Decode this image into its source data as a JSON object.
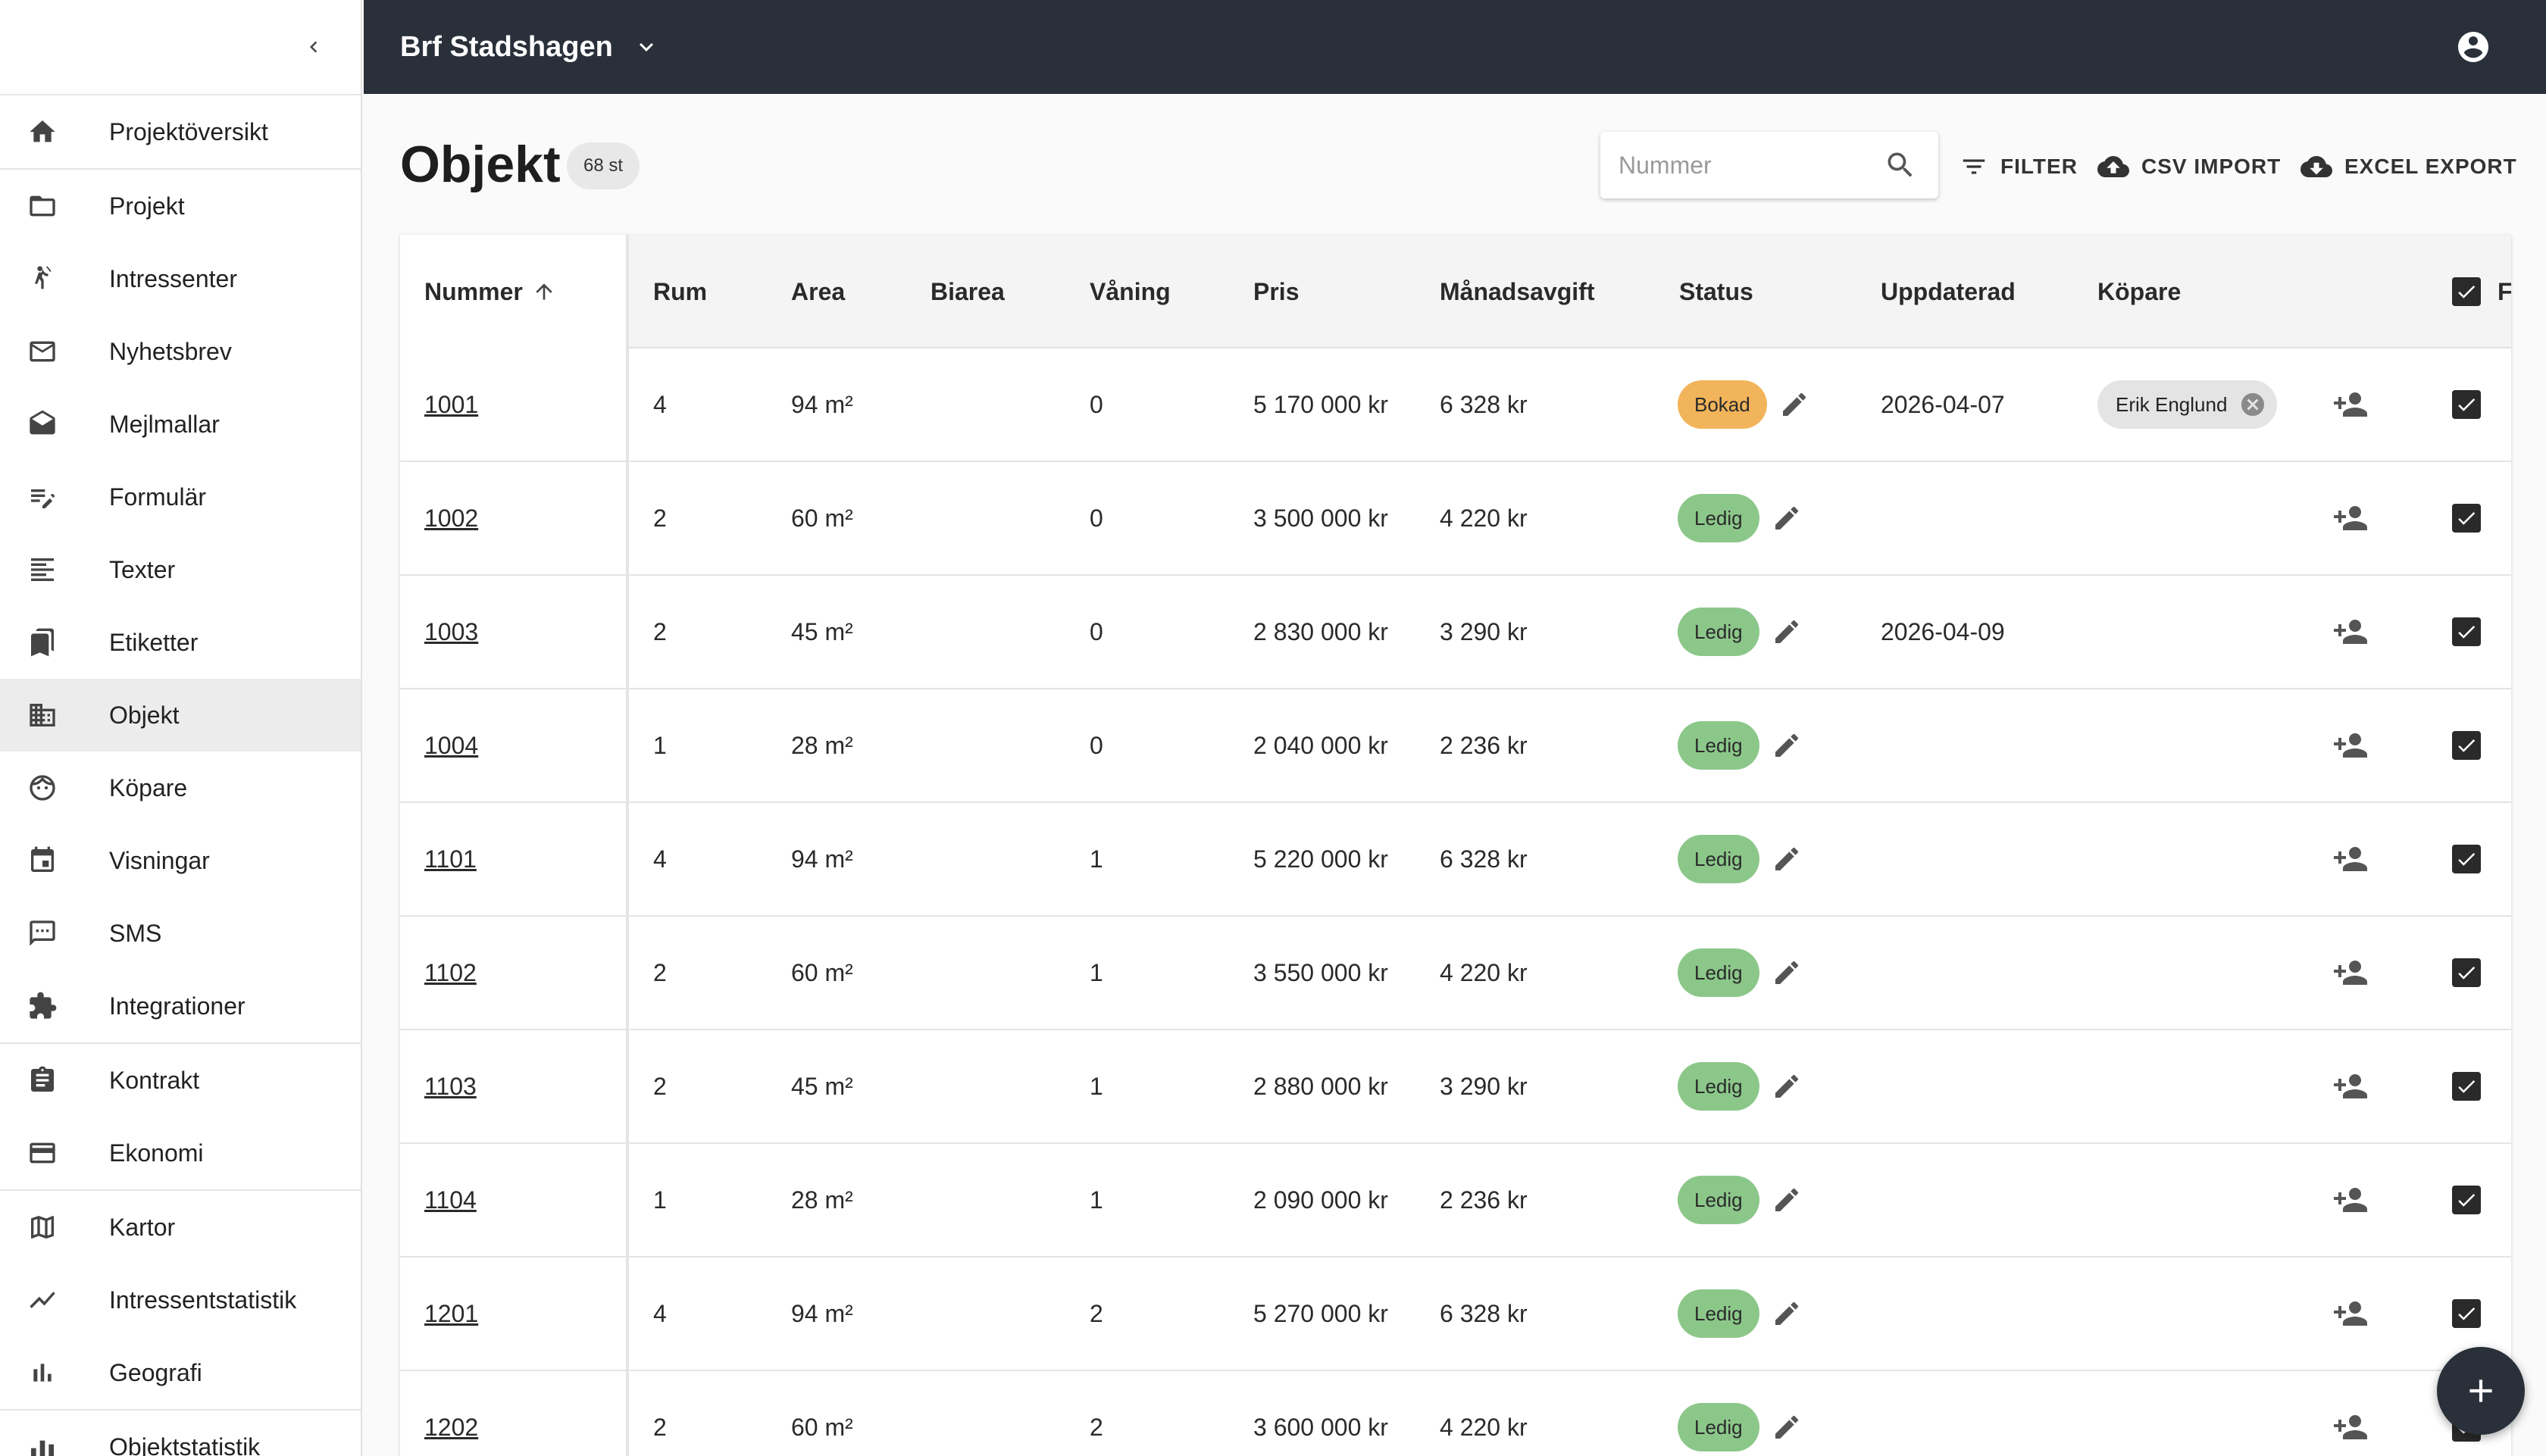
{
  "header": {
    "project_name": "Brf Stadshagen"
  },
  "sidebar": {
    "items": [
      {
        "label": "Projektöversikt",
        "icon": "home-icon"
      },
      {
        "label": "Projekt",
        "icon": "folder-icon"
      },
      {
        "label": "Intressenter",
        "icon": "person-wave-icon"
      },
      {
        "label": "Nyhetsbrev",
        "icon": "mail-icon"
      },
      {
        "label": "Mejlmallar",
        "icon": "drafts-icon"
      },
      {
        "label": "Formulär",
        "icon": "edit-note-icon"
      },
      {
        "label": "Texter",
        "icon": "text-lines-icon"
      },
      {
        "label": "Etiketter",
        "icon": "bookmarks-icon"
      },
      {
        "label": "Objekt",
        "icon": "building-icon"
      },
      {
        "label": "Köpare",
        "icon": "face-icon"
      },
      {
        "label": "Visningar",
        "icon": "calendar-icon"
      },
      {
        "label": "SMS",
        "icon": "sms-icon"
      },
      {
        "label": "Integrationer",
        "icon": "puzzle-icon"
      },
      {
        "label": "Kontrakt",
        "icon": "clipboard-icon"
      },
      {
        "label": "Ekonomi",
        "icon": "credit-card-icon"
      },
      {
        "label": "Kartor",
        "icon": "map-icon"
      },
      {
        "label": "Intressentstatistik",
        "icon": "trend-icon"
      },
      {
        "label": "Geografi",
        "icon": "bar-chart-icon"
      },
      {
        "label": "Objektstatistik",
        "icon": "stats-icon"
      }
    ]
  },
  "page": {
    "title": "Objekt",
    "count": "68 st"
  },
  "search": {
    "placeholder": "Nummer"
  },
  "toolbar": {
    "filter": "FILTER",
    "csv_import": "CSV IMPORT",
    "excel_export": "EXCEL EXPORT"
  },
  "table": {
    "columns": {
      "nummer": "Nummer",
      "rum": "Rum",
      "area": "Area",
      "biarea": "Biarea",
      "vaning": "Våning",
      "pris": "Pris",
      "manadsavgift": "Månadsavgift",
      "status": "Status",
      "uppdaterad": "Uppdaterad",
      "kopare": "Köpare",
      "extra": "F"
    },
    "rows": [
      {
        "nummer": "1001",
        "rum": "4",
        "area": "94 m²",
        "biarea": "",
        "vaning": "0",
        "pris": "5 170 000 kr",
        "avgift": "6 328 kr",
        "status": "Bokad",
        "uppdaterad": "2026-04-07",
        "kopare": "Erik Englund"
      },
      {
        "nummer": "1002",
        "rum": "2",
        "area": "60 m²",
        "biarea": "",
        "vaning": "0",
        "pris": "3 500 000 kr",
        "avgift": "4 220 kr",
        "status": "Ledig",
        "uppdaterad": "",
        "kopare": ""
      },
      {
        "nummer": "1003",
        "rum": "2",
        "area": "45 m²",
        "biarea": "",
        "vaning": "0",
        "pris": "2 830 000 kr",
        "avgift": "3 290 kr",
        "status": "Ledig",
        "uppdaterad": "2026-04-09",
        "kopare": ""
      },
      {
        "nummer": "1004",
        "rum": "1",
        "area": "28 m²",
        "biarea": "",
        "vaning": "0",
        "pris": "2 040 000 kr",
        "avgift": "2 236 kr",
        "status": "Ledig",
        "uppdaterad": "",
        "kopare": ""
      },
      {
        "nummer": "1101",
        "rum": "4",
        "area": "94 m²",
        "biarea": "",
        "vaning": "1",
        "pris": "5 220 000 kr",
        "avgift": "6 328 kr",
        "status": "Ledig",
        "uppdaterad": "",
        "kopare": ""
      },
      {
        "nummer": "1102",
        "rum": "2",
        "area": "60 m²",
        "biarea": "",
        "vaning": "1",
        "pris": "3 550 000 kr",
        "avgift": "4 220 kr",
        "status": "Ledig",
        "uppdaterad": "",
        "kopare": ""
      },
      {
        "nummer": "1103",
        "rum": "2",
        "area": "45 m²",
        "biarea": "",
        "vaning": "1",
        "pris": "2 880 000 kr",
        "avgift": "3 290 kr",
        "status": "Ledig",
        "uppdaterad": "",
        "kopare": ""
      },
      {
        "nummer": "1104",
        "rum": "1",
        "area": "28 m²",
        "biarea": "",
        "vaning": "1",
        "pris": "2 090 000 kr",
        "avgift": "2 236 kr",
        "status": "Ledig",
        "uppdaterad": "",
        "kopare": ""
      },
      {
        "nummer": "1201",
        "rum": "4",
        "area": "94 m²",
        "biarea": "",
        "vaning": "2",
        "pris": "5 270 000 kr",
        "avgift": "6 328 kr",
        "status": "Ledig",
        "uppdaterad": "",
        "kopare": ""
      },
      {
        "nummer": "1202",
        "rum": "2",
        "area": "60 m²",
        "biarea": "",
        "vaning": "2",
        "pris": "3 600 000 kr",
        "avgift": "4 220 kr",
        "status": "Ledig",
        "uppdaterad": "",
        "kopare": ""
      }
    ]
  },
  "colors": {
    "appbar": "#29303a",
    "bokad": "#f2b45a",
    "ledig": "#8cc78a"
  }
}
